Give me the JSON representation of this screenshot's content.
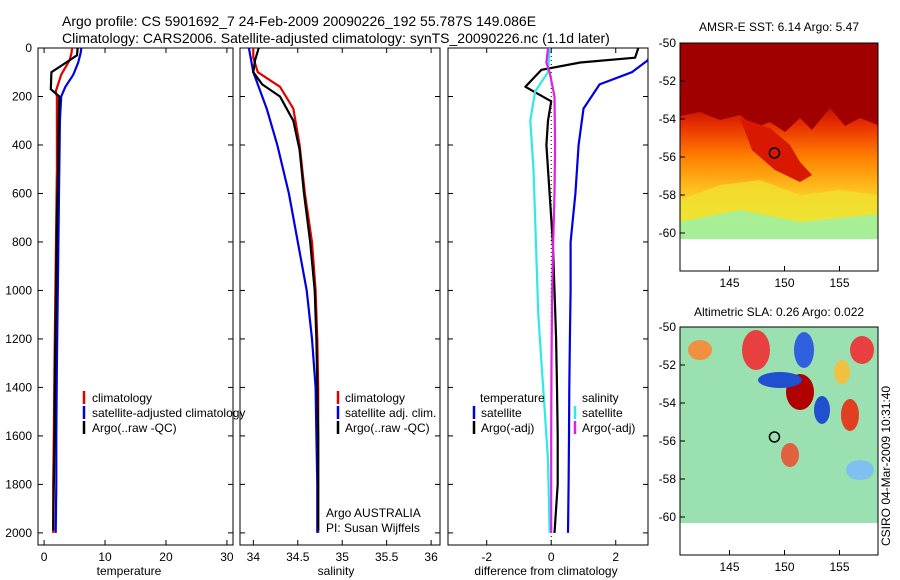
{
  "header": {
    "line1": "Argo profile: CS 5901692_7 24-Feb-2009 20090226_192 55.787S 149.086E",
    "line2": "Climatology: CARS2006. Satellite-adjusted climatology: synTS_20090226.nc (1.1d later)"
  },
  "credit": "CSIRO 04-Mar-2009 10:31:40",
  "colors": {
    "clim": "#e00000",
    "sat": "#0000e0",
    "argo": "#000000",
    "cyan": "#30e8e8",
    "magenta": "#e020e0"
  },
  "chart_data": [
    {
      "id": "temperature",
      "type": "line",
      "xlabel": "temperature",
      "xlim": [
        -1,
        31
      ],
      "ylim": [
        0,
        2050
      ],
      "xticks": [
        0,
        10,
        20,
        30
      ],
      "yticks": [
        0,
        200,
        400,
        600,
        800,
        1000,
        1200,
        1400,
        1600,
        1800,
        2000
      ],
      "legend": [
        "climatology",
        "satellite-adjusted climatology",
        "Argo(..raw -QC)"
      ],
      "series": [
        {
          "name": "climatology",
          "color": "clim",
          "x": [
            4.6,
            4.5,
            4.2,
            2.8,
            1.9,
            2.1,
            2.1,
            2.1,
            2.0,
            1.9,
            1.8,
            1.7,
            1.6,
            1.5,
            1.5
          ],
          "y": [
            0,
            20,
            50,
            110,
            180,
            200,
            300,
            500,
            700,
            900,
            1100,
            1300,
            1600,
            1800,
            2000
          ]
        },
        {
          "name": "satellite-adjusted climatology",
          "color": "sat",
          "x": [
            6.1,
            6.0,
            5.6,
            4.8,
            3.5,
            2.8,
            2.6,
            2.5,
            2.4,
            2.3,
            2.2,
            2.1,
            2.0,
            2.0,
            1.9
          ],
          "y": [
            0,
            20,
            60,
            110,
            160,
            200,
            300,
            500,
            700,
            900,
            1100,
            1300,
            1600,
            1800,
            2000
          ]
        },
        {
          "name": "Argo(..raw -QC)",
          "color": "argo",
          "x": [
            5.5,
            5.4,
            3.0,
            1.2,
            1.1,
            2.5,
            2.4,
            2.3,
            2.1,
            2.0,
            1.9,
            1.8,
            1.7,
            1.6,
            1.5
          ],
          "y": [
            0,
            30,
            70,
            100,
            170,
            200,
            300,
            500,
            700,
            900,
            1100,
            1300,
            1600,
            1800,
            1990
          ]
        }
      ]
    },
    {
      "id": "salinity",
      "type": "line",
      "xlabel": "salinity",
      "xlim": [
        33.85,
        36.1
      ],
      "ylim": [
        0,
        2050
      ],
      "xticks": [
        34,
        34.5,
        35,
        35.5,
        36
      ],
      "yticks": [
        0,
        200,
        400,
        600,
        800,
        1000,
        1200,
        1400,
        1600,
        1800,
        2000
      ],
      "legend": [
        "climatology",
        "satellite adj. clim.",
        "Argo(..raw -QC)"
      ],
      "annotation": [
        "Argo AUSTRALIA",
        "PI: Susan Wijffels"
      ],
      "series": [
        {
          "name": "climatology",
          "color": "clim",
          "x": [
            34.0,
            34.0,
            34.05,
            34.3,
            34.45,
            34.52,
            34.58,
            34.66,
            34.7,
            34.72,
            34.73,
            34.73,
            34.73,
            34.73,
            34.73
          ],
          "y": [
            0,
            40,
            100,
            160,
            250,
            400,
            600,
            800,
            1000,
            1200,
            1400,
            1600,
            1800,
            1900,
            2000
          ]
        },
        {
          "name": "satellite adj. clim.",
          "color": "sat",
          "x": [
            33.95,
            34.0,
            34.15,
            34.27,
            34.4,
            34.5,
            34.6,
            34.66,
            34.7,
            34.71,
            34.72,
            34.72,
            34.72
          ],
          "y": [
            0,
            100,
            250,
            400,
            600,
            800,
            1000,
            1200,
            1400,
            1600,
            1800,
            1900,
            2000
          ]
        },
        {
          "name": "Argo(..raw -QC)",
          "color": "argo",
          "x": [
            34.06,
            34.02,
            34.0,
            34.1,
            34.3,
            34.45,
            34.52,
            34.57,
            34.64,
            34.69,
            34.71,
            34.72,
            34.73,
            34.73,
            34.73
          ],
          "y": [
            0,
            50,
            100,
            150,
            200,
            300,
            420,
            600,
            800,
            1000,
            1200,
            1400,
            1600,
            1800,
            1990
          ]
        }
      ]
    },
    {
      "id": "difference",
      "type": "line",
      "xlabel": "difference from climatology",
      "xlim": [
        -3.2,
        3.0
      ],
      "ylim": [
        0,
        2050
      ],
      "xticks": [
        -2,
        0,
        2
      ],
      "yticks": [
        0,
        200,
        400,
        600,
        800,
        1000,
        1200,
        1400,
        1600,
        1800,
        2000
      ],
      "legend_left_title": "temperature",
      "legend_right_title": "salinity",
      "legend_left": [
        "satellite",
        "Argo(-adj)"
      ],
      "legend_right": [
        "satellite",
        "Argo(-adj)"
      ],
      "series": [
        {
          "name": "temperature satellite",
          "color": "sat",
          "x": [
            3.1,
            3.0,
            2.5,
            1.5,
            1.0,
            0.85,
            0.75,
            0.6,
            0.6,
            0.58,
            0.56,
            0.55,
            0.54,
            0.53,
            0.52
          ],
          "y": [
            0,
            50,
            100,
            150,
            250,
            400,
            600,
            800,
            1000,
            1200,
            1400,
            1600,
            1800,
            1900,
            2000
          ]
        },
        {
          "name": "temperature Argo(-adj)",
          "color": "argo",
          "x": [
            2.7,
            2.6,
            0.9,
            -0.3,
            -0.8,
            0.0,
            -0.1,
            -0.15,
            -0.05,
            0.05,
            0.1,
            0.15,
            0.18,
            0.2,
            0.2,
            0.1
          ],
          "y": [
            0,
            40,
            60,
            90,
            160,
            220,
            300,
            400,
            600,
            800,
            1000,
            1200,
            1400,
            1600,
            1800,
            2000
          ]
        },
        {
          "name": "salinity satellite",
          "color": "cyan",
          "x": [
            -0.05,
            -0.1,
            -0.5,
            -0.65,
            -0.55,
            -0.5,
            -0.45,
            -0.4,
            -0.3,
            -0.2,
            -0.1,
            -0.05
          ],
          "y": [
            0,
            100,
            180,
            300,
            500,
            700,
            900,
            1100,
            1300,
            1500,
            1700,
            2000
          ]
        },
        {
          "name": "salinity Argo(-adj)",
          "color": "magenta",
          "x": [
            -0.1,
            -0.15,
            -0.05,
            0.1,
            0.12,
            0.1,
            0.06,
            0.03,
            0.01,
            0.0,
            0.0
          ],
          "y": [
            0,
            60,
            100,
            200,
            400,
            600,
            800,
            1000,
            1300,
            1600,
            2000
          ]
        }
      ]
    },
    {
      "id": "sst_map",
      "type": "heatmap",
      "title": "AMSR-E SST: 6.14 Argo: 5.47",
      "xticks": [
        145,
        150,
        155
      ],
      "yticks": [
        -50,
        -52,
        -54,
        -56,
        -58,
        -60
      ],
      "xlim": [
        140.5,
        158.5
      ],
      "ylim": [
        -62,
        -50
      ],
      "data_extent_ylim": [
        -60,
        -50
      ],
      "marker": {
        "lon": 149.086,
        "lat": -55.787
      }
    },
    {
      "id": "sla_map",
      "type": "heatmap",
      "title": "Altimetric SLA: 0.26 Argo: 0.022",
      "xticks": [
        145,
        150,
        155
      ],
      "yticks": [
        -50,
        -52,
        -54,
        -56,
        -58,
        -60
      ],
      "xlim": [
        140.5,
        158.5
      ],
      "ylim": [
        -62,
        -50
      ],
      "data_extent_ylim": [
        -60,
        -50
      ],
      "marker": {
        "lon": 149.086,
        "lat": -55.787
      }
    }
  ]
}
